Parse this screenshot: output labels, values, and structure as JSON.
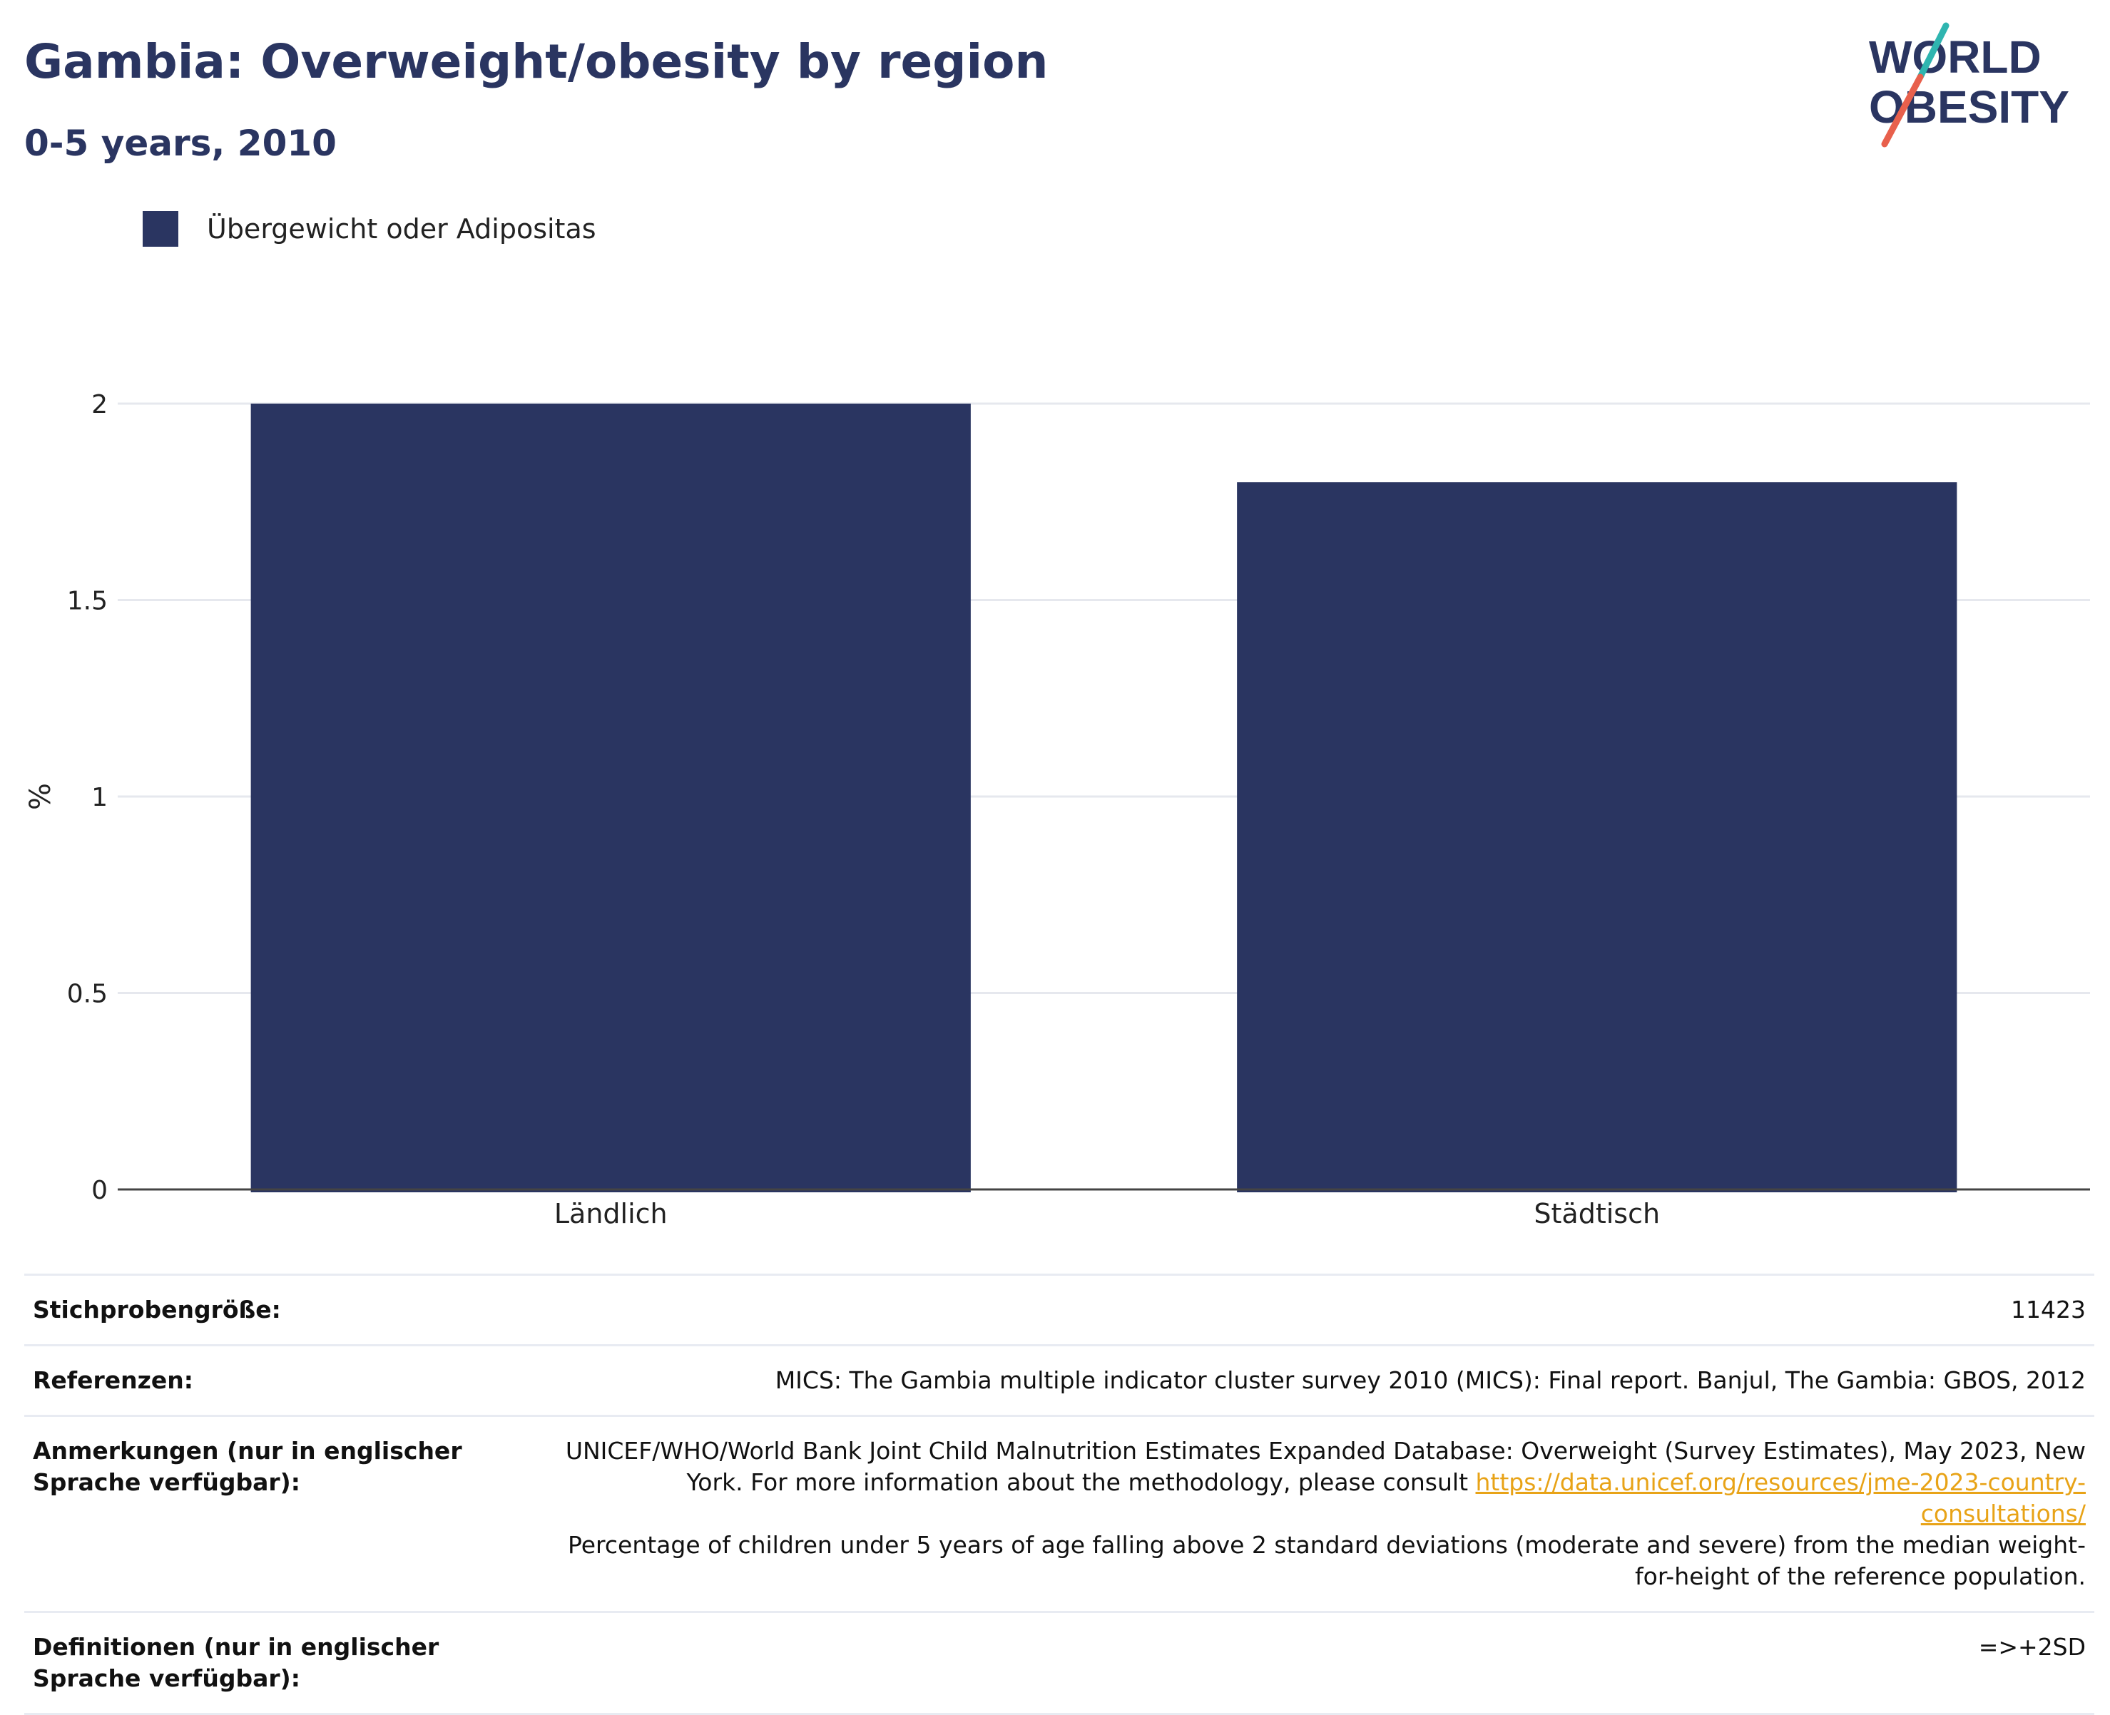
{
  "header": {
    "title": "Gambia: Overweight/obesity by region",
    "subtitle": "0-5 years, 2010"
  },
  "logo": {
    "line1": "WORLD",
    "line2": "OBESITY"
  },
  "legend": {
    "label": "Übergewicht oder Adipositas",
    "color": "#2a3561"
  },
  "chart_data": {
    "type": "bar",
    "categories": [
      "Ländlich",
      "Städtisch"
    ],
    "series": [
      {
        "name": "Übergewicht oder Adipositas",
        "values": [
          2.0,
          1.8
        ],
        "color": "#2a3561"
      }
    ],
    "ylabel": "%",
    "ylim": [
      0,
      2.0
    ],
    "yticks": [
      0,
      0.5,
      1,
      1.5,
      2
    ],
    "ytick_labels": [
      "0",
      "0.5",
      "1",
      "1.5",
      "2"
    ],
    "grid": true
  },
  "footer": {
    "sample_label": "Stichprobengröße:",
    "sample_value": "11423",
    "references_label": "Referenzen:",
    "references_value": "MICS: The Gambia multiple indicator cluster survey 2010 (MICS): Final report. Banjul, The Gambia: GBOS, 2012",
    "notes_label": "Anmerkungen (nur in englischer Sprache verfügbar):",
    "notes_text_1": "UNICEF/WHO/World Bank Joint Child Malnutrition Estimates Expanded Database: Overweight (Survey Estimates), May 2023, New York. For more information about the methodology, please consult ",
    "notes_link": "https://data.unicef.org/resources/jme-2023-country-consultations/",
    "notes_text_2": "Percentage of children under 5 years of age falling above 2 standard deviations (moderate and severe) from the median weight-for-height of the reference population.",
    "definitions_label": "Definitionen (nur in englischer Sprache verfügbar):",
    "definitions_value": "=>+2SD"
  }
}
